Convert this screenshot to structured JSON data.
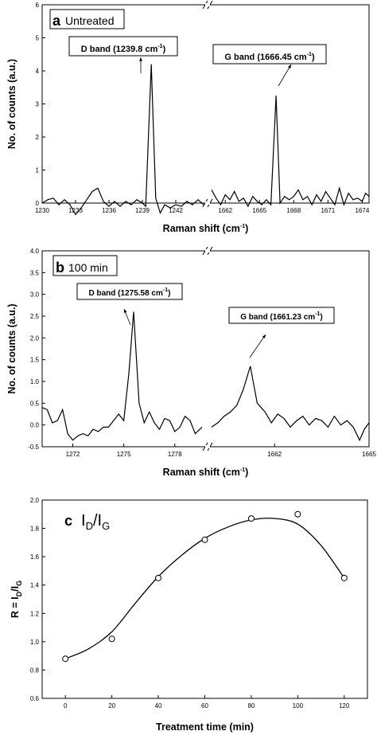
{
  "chart_data": [
    {
      "type": "line",
      "panel_label": "a",
      "title": "Untreated",
      "xlabel": "Raman shift (cm",
      "xlabel_sup": "-1",
      "ylabel": "No. of counts (a.u.)",
      "ylim": [
        0,
        6
      ],
      "y_ticks": [
        "0",
        "1",
        "2",
        "3",
        "4",
        "5",
        "6"
      ],
      "segments": [
        {
          "xlim": [
            1230,
            1244.5
          ],
          "x_ticks": [
            "1230",
            "1233",
            "1236",
            "1239",
            "1242"
          ],
          "x": [
            1230,
            1230.5,
            1231,
            1231.5,
            1232,
            1232.5,
            1233,
            1233.5,
            1234,
            1234.5,
            1235,
            1235.5,
            1236,
            1236.5,
            1237,
            1237.5,
            1238,
            1238.5,
            1239,
            1239.3,
            1239.8,
            1240.2,
            1240.6,
            1241,
            1241.5,
            1242,
            1242.5,
            1243,
            1243.5,
            1244,
            1244.5
          ],
          "y": [
            0,
            0.1,
            0.15,
            -0.05,
            0.1,
            -0.05,
            -0.35,
            -0.15,
            0.1,
            0.35,
            0.45,
            0.05,
            -0.1,
            0.05,
            -0.1,
            0.05,
            -0.05,
            0.1,
            0.0,
            -0.1,
            4.2,
            0.15,
            -0.3,
            -0.05,
            -0.15,
            -0.05,
            -0.1,
            0.05,
            -0.05,
            0.1,
            -0.05
          ]
        },
        {
          "xlim": [
            1660.8,
            1674.6
          ],
          "x_ticks": [
            "1662",
            "1665",
            "1668",
            "1671",
            "1674"
          ],
          "x": [
            1660.8,
            1661.2,
            1661.6,
            1662,
            1662.4,
            1662.8,
            1663.2,
            1663.6,
            1664,
            1664.4,
            1664.8,
            1665.2,
            1665.6,
            1666,
            1666.45,
            1666.8,
            1667.2,
            1667.6,
            1668,
            1668.4,
            1668.8,
            1669.2,
            1669.6,
            1670,
            1670.4,
            1670.8,
            1671.2,
            1671.6,
            1672,
            1672.4,
            1672.8,
            1673.2,
            1673.6,
            1674,
            1674.3,
            1674.6
          ],
          "y": [
            0.4,
            0.15,
            -0.05,
            0.25,
            0.1,
            0.35,
            0.05,
            0.15,
            -0.1,
            0.2,
            0.05,
            -0.05,
            0.1,
            -0.05,
            3.25,
            0.0,
            0.2,
            0.1,
            0.2,
            0.4,
            0.1,
            0.2,
            -0.05,
            0.25,
            0.05,
            0.35,
            0.15,
            -0.05,
            0.45,
            -0.05,
            0.3,
            0.1,
            0.15,
            0.05,
            0.3,
            0.2
          ]
        }
      ],
      "annotations": [
        {
          "label": "D band (1239.8 cm",
          "sup": "-1",
          "close": ")"
        },
        {
          "label": "G band (1666.45 cm",
          "sup": "-1",
          "close": ")"
        }
      ]
    },
    {
      "type": "line",
      "panel_label": "b",
      "title": "100 min",
      "xlabel": "Raman shift (cm",
      "xlabel_sup": "-1",
      "ylabel": "No. of counts (a.u.)",
      "ylim": [
        -0.5,
        4.0
      ],
      "y_ticks": [
        "-0.5",
        "0.0",
        "0.5",
        "1.0",
        "1.5",
        "2.0",
        "2.5",
        "3.0",
        "3.5",
        "4.0"
      ],
      "segments": [
        {
          "xlim": [
            1270.2,
            1279.6
          ],
          "x_ticks": [
            "1272",
            "1275",
            "1278"
          ],
          "x": [
            1270.2,
            1270.5,
            1270.8,
            1271.1,
            1271.4,
            1271.7,
            1272,
            1272.3,
            1272.6,
            1272.9,
            1273.2,
            1273.5,
            1273.8,
            1274.1,
            1274.4,
            1274.7,
            1275,
            1275.3,
            1275.58,
            1275.9,
            1276.2,
            1276.5,
            1276.8,
            1277.1,
            1277.4,
            1277.7,
            1278,
            1278.3,
            1278.6,
            1278.9,
            1279.2,
            1279.6
          ],
          "y": [
            0.4,
            0.35,
            0.05,
            0.1,
            0.35,
            -0.2,
            -0.35,
            -0.25,
            -0.2,
            -0.25,
            -0.1,
            -0.15,
            -0.05,
            -0.05,
            0.1,
            0.25,
            0.1,
            1.2,
            2.6,
            0.5,
            0.05,
            0.3,
            0.05,
            -0.1,
            0.15,
            0.1,
            -0.15,
            -0.05,
            0.2,
            0.1,
            -0.2,
            -0.05
          ]
        },
        {
          "xlim": [
            1660.0,
            1665.0
          ],
          "x_ticks": [
            "1662",
            "1665"
          ],
          "x": [
            1660.0,
            1660.2,
            1660.4,
            1660.6,
            1660.8,
            1661.0,
            1661.23,
            1661.45,
            1661.7,
            1661.9,
            1662.1,
            1662.3,
            1662.5,
            1662.7,
            1662.9,
            1663.1,
            1663.3,
            1663.5,
            1663.7,
            1663.9,
            1664.1,
            1664.3,
            1664.5,
            1664.7,
            1664.85,
            1665.0
          ],
          "y": [
            -0.05,
            0.05,
            0.2,
            0.3,
            0.45,
            0.8,
            1.35,
            0.5,
            0.3,
            0.05,
            0.25,
            0.15,
            -0.05,
            0.1,
            0.2,
            0.0,
            0.15,
            0.1,
            -0.05,
            0.2,
            0.0,
            0.1,
            -0.05,
            -0.35,
            -0.1,
            0.05
          ]
        }
      ],
      "annotations": [
        {
          "label": "D band (1275.58 cm",
          "sup": "-1",
          "close": ")"
        },
        {
          "label": "G band (1661.23 cm",
          "sup": "-1",
          "close": ")"
        }
      ]
    },
    {
      "type": "scatter",
      "panel_label": "c",
      "title_parts": [
        "I",
        "D",
        "/I",
        "G"
      ],
      "xlabel": "Treatment time (min)",
      "ylabel_parts": [
        "R = I",
        "D",
        "/I",
        "G"
      ],
      "xlim": [
        -10,
        130
      ],
      "ylim": [
        0.6,
        2.0
      ],
      "x_ticks": [
        "0",
        "20",
        "40",
        "60",
        "80",
        "100",
        "120"
      ],
      "y_ticks": [
        "0.6",
        "0.8",
        "1.0",
        "1.2",
        "1.4",
        "1.6",
        "1.8",
        "2.0"
      ],
      "points": {
        "x": [
          0,
          20,
          40,
          60,
          80,
          100,
          120
        ],
        "y": [
          0.88,
          1.02,
          1.45,
          1.72,
          1.87,
          1.9,
          1.45
        ]
      },
      "fit_curve": {
        "x": [
          0,
          10,
          20,
          30,
          40,
          50,
          60,
          70,
          80,
          90,
          100,
          110,
          120
        ],
        "y": [
          0.88,
          0.95,
          1.07,
          1.27,
          1.46,
          1.61,
          1.73,
          1.81,
          1.86,
          1.87,
          1.83,
          1.68,
          1.45
        ]
      }
    }
  ]
}
